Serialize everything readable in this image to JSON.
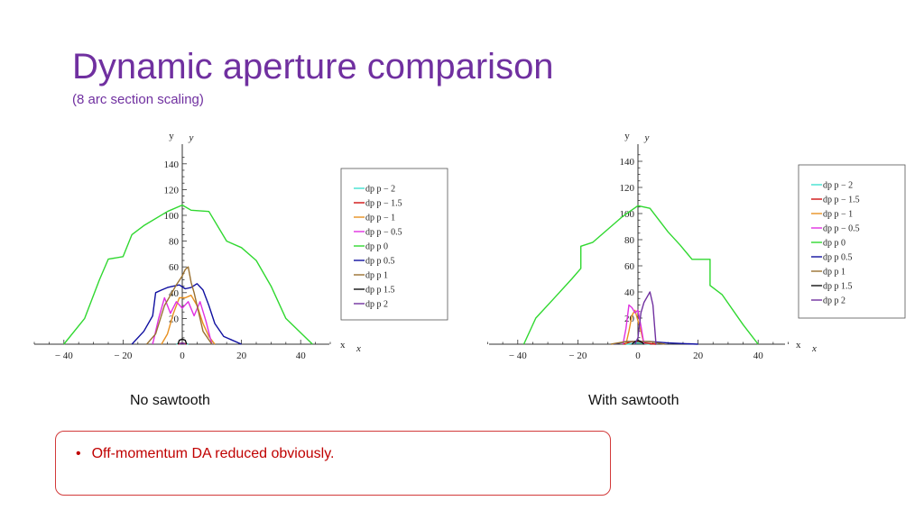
{
  "slide": {
    "title": "Dynamic aperture comparison",
    "subtitle": "(8 arc section scaling)",
    "note": "Off-momentum DA reduced obviously.",
    "note_bullet": "•"
  },
  "chart_data": [
    {
      "type": "line",
      "caption": "No sawtooth",
      "xlabel": "x⁄σx",
      "ylabel": "y⁄σy",
      "xlabel_main": "x",
      "xlabel_sub": "x",
      "ylabel_main": "y",
      "ylabel_sub": "y",
      "xlim": [
        -50,
        50
      ],
      "ylim": [
        0,
        150
      ],
      "xticks": [
        -40,
        -20,
        0,
        20,
        40
      ],
      "xtick_labels": [
        "− 40",
        "− 20",
        "0",
        "20",
        "40"
      ],
      "yticks": [
        20,
        40,
        60,
        80,
        100,
        120,
        140
      ],
      "ytick_labels": [
        "20",
        "40",
        "60",
        "80",
        "100",
        "120",
        "140"
      ],
      "legend_position": "right",
      "series": [
        {
          "name": "dp p  − 2",
          "color": "#40e0d0",
          "x": [
            -2,
            0,
            2
          ],
          "y": [
            0,
            1,
            0
          ]
        },
        {
          "name": "dp p  − 1.5",
          "color": "#d01010",
          "x": [
            -1.5,
            0,
            1.5
          ],
          "y": [
            0,
            1,
            0
          ]
        },
        {
          "name": "dp p  − 1",
          "color": "#e89020",
          "x": [
            -7,
            -5,
            -3,
            -1,
            1,
            3,
            5,
            7,
            9,
            11
          ],
          "y": [
            0,
            8,
            24,
            36,
            36,
            38,
            30,
            16,
            6,
            0
          ]
        },
        {
          "name": "dp p  − 0.5",
          "color": "#e030e0",
          "x": [
            -10,
            -8,
            -6,
            -4,
            -2,
            0,
            2,
            4,
            6,
            8,
            10
          ],
          "y": [
            0,
            20,
            36,
            24,
            33,
            28,
            33,
            22,
            33,
            18,
            0
          ]
        },
        {
          "name": "dp p  0",
          "color": "#30d830",
          "x": [
            -40,
            -33,
            -28,
            -25,
            -20,
            -17,
            -13,
            -5,
            0,
            3,
            9,
            15,
            20,
            25,
            30,
            35,
            44
          ],
          "y": [
            0,
            20,
            50,
            66,
            68,
            85,
            92,
            103,
            108,
            104,
            103,
            80,
            75,
            65,
            45,
            20,
            0
          ]
        },
        {
          "name": "dp p  0.5",
          "color": "#1010a0",
          "x": [
            -17,
            -13,
            -10,
            -9,
            -7,
            -5,
            -3,
            -1,
            1,
            3,
            5,
            7,
            9,
            11,
            14,
            20
          ],
          "y": [
            0,
            10,
            22,
            40,
            42,
            44,
            45,
            46,
            43,
            44,
            47,
            42,
            30,
            16,
            6,
            0
          ]
        },
        {
          "name": "dp p  1",
          "color": "#9a7030",
          "x": [
            -12,
            -9,
            -6,
            -4,
            -2,
            0,
            1,
            2,
            3,
            4,
            5,
            7,
            10
          ],
          "y": [
            0,
            8,
            30,
            38,
            46,
            53,
            58,
            60,
            48,
            40,
            30,
            10,
            0
          ]
        },
        {
          "name": "dp p  1.5",
          "color": "#101010",
          "x": [
            -1.5,
            -1,
            0,
            1,
            1.5
          ],
          "y": [
            0,
            3,
            4,
            3,
            0
          ]
        },
        {
          "name": "dp p  2",
          "color": "#7030a0",
          "x": [
            -1,
            0,
            1
          ],
          "y": [
            0,
            1,
            0
          ]
        }
      ]
    },
    {
      "type": "line",
      "caption": "With sawtooth",
      "xlabel": "x⁄σx",
      "ylabel": "y⁄σy",
      "xlabel_main": "x",
      "xlabel_sub": "x",
      "ylabel_main": "y",
      "ylabel_sub": "y",
      "xlim": [
        -50,
        50
      ],
      "ylim": [
        0,
        150
      ],
      "xticks": [
        -40,
        -20,
        0,
        20,
        40
      ],
      "xtick_labels": [
        "− 40",
        "− 20",
        "0",
        "20",
        "40"
      ],
      "yticks": [
        20,
        40,
        60,
        80,
        100,
        120,
        140
      ],
      "ytick_labels": [
        "20",
        "40",
        "60",
        "80",
        "100",
        "120",
        "140"
      ],
      "legend_position": "right",
      "series": [
        {
          "name": "dp p  − 2",
          "color": "#40e0d0",
          "x": [
            -4,
            0,
            4
          ],
          "y": [
            0,
            1,
            0
          ]
        },
        {
          "name": "dp p  − 1.5",
          "color": "#d01010",
          "x": [
            -5,
            -2,
            0,
            2,
            6
          ],
          "y": [
            0,
            2,
            2,
            1,
            0
          ]
        },
        {
          "name": "dp p  − 1",
          "color": "#e89020",
          "x": [
            -4,
            -3,
            -2,
            -1,
            0,
            1,
            2
          ],
          "y": [
            0,
            10,
            22,
            26,
            18,
            10,
            0
          ]
        },
        {
          "name": "dp p  − 0.5",
          "color": "#e030e0",
          "x": [
            -5,
            -4,
            -3,
            -2,
            -1,
            0,
            1,
            2
          ],
          "y": [
            0,
            12,
            30,
            28,
            24,
            26,
            14,
            0
          ]
        },
        {
          "name": "dp p  0",
          "color": "#30d830",
          "x": [
            -38,
            -34,
            -28,
            -22,
            -19,
            -19,
            -15,
            -10,
            -5,
            0,
            4,
            10,
            14,
            18,
            18,
            24,
            24,
            28,
            35,
            40
          ],
          "y": [
            0,
            20,
            35,
            50,
            58,
            75,
            78,
            88,
            98,
            106,
            104,
            86,
            76,
            65,
            65,
            65,
            45,
            38,
            15,
            0
          ]
        },
        {
          "name": "dp p  0.5",
          "color": "#1010a0",
          "x": [
            -8,
            -4,
            0,
            4,
            10,
            20
          ],
          "y": [
            0,
            2,
            2,
            2,
            1,
            0
          ]
        },
        {
          "name": "dp p  1",
          "color": "#9a7030",
          "x": [
            -9,
            -4,
            0,
            4,
            9
          ],
          "y": [
            0,
            2,
            2,
            2,
            0
          ]
        },
        {
          "name": "dp p  1.5",
          "color": "#101010",
          "x": [
            -2,
            -1,
            0,
            1,
            2
          ],
          "y": [
            0,
            2,
            3,
            2,
            0
          ]
        },
        {
          "name": "dp p  2",
          "color": "#7030a0",
          "x": [
            -1,
            0,
            1,
            2,
            3,
            4,
            5,
            6
          ],
          "y": [
            0,
            5,
            24,
            32,
            36,
            40,
            30,
            0
          ]
        }
      ]
    }
  ]
}
